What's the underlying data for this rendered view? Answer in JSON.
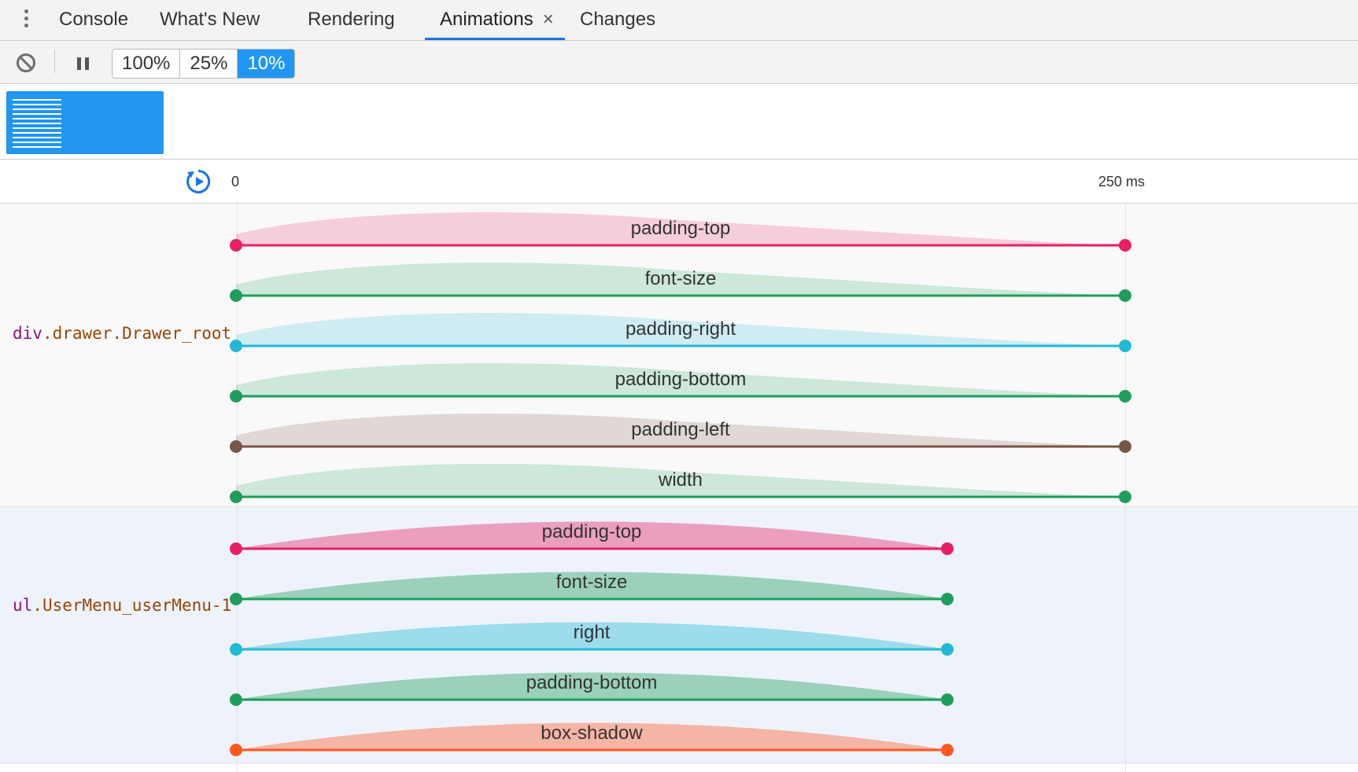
{
  "tabs": [
    {
      "label": "Console",
      "active": false
    },
    {
      "label": "What's New",
      "active": false
    },
    {
      "label": "Rendering",
      "active": false
    },
    {
      "label": "Animations",
      "active": true,
      "close": "×"
    },
    {
      "label": "Changes",
      "active": false
    }
  ],
  "toolbar": {
    "clear_icon": "block-icon",
    "pause_icon": "pause-icon",
    "speeds": [
      "100%",
      "25%",
      "10%"
    ],
    "active_speed": "10%"
  },
  "timeline": {
    "replay_icon": "replay-icon",
    "ticks": [
      {
        "label": "0",
        "time_ms": 0
      },
      {
        "label": "250 ms",
        "time_ms": 250
      }
    ],
    "groups": [
      {
        "node_tag": "div",
        "node_class": ".drawer.Drawer_root",
        "duration_ms": 250,
        "bump": "early",
        "fill_opacity": 0.2,
        "animations": [
          {
            "name": "padding-top",
            "color": "#e91e63"
          },
          {
            "name": "font-size",
            "color": "#1e9e5a"
          },
          {
            "name": "padding-right",
            "color": "#21b9d6"
          },
          {
            "name": "padding-bottom",
            "color": "#1e9e5a"
          },
          {
            "name": "padding-left",
            "color": "#795548"
          },
          {
            "name": "width",
            "color": "#1e9e5a"
          }
        ]
      },
      {
        "node_tag": "ul",
        "node_class": ".UserMenu_userMenu-1",
        "duration_ms": 200,
        "bump": "middle",
        "fill_opacity": 0.4,
        "animations": [
          {
            "name": "padding-top",
            "color": "#e91e63"
          },
          {
            "name": "font-size",
            "color": "#1e9e5a"
          },
          {
            "name": "right",
            "color": "#21b9d6"
          },
          {
            "name": "padding-bottom",
            "color": "#1e9e5a"
          },
          {
            "name": "box-shadow",
            "color": "#ff5722"
          }
        ]
      }
    ]
  }
}
